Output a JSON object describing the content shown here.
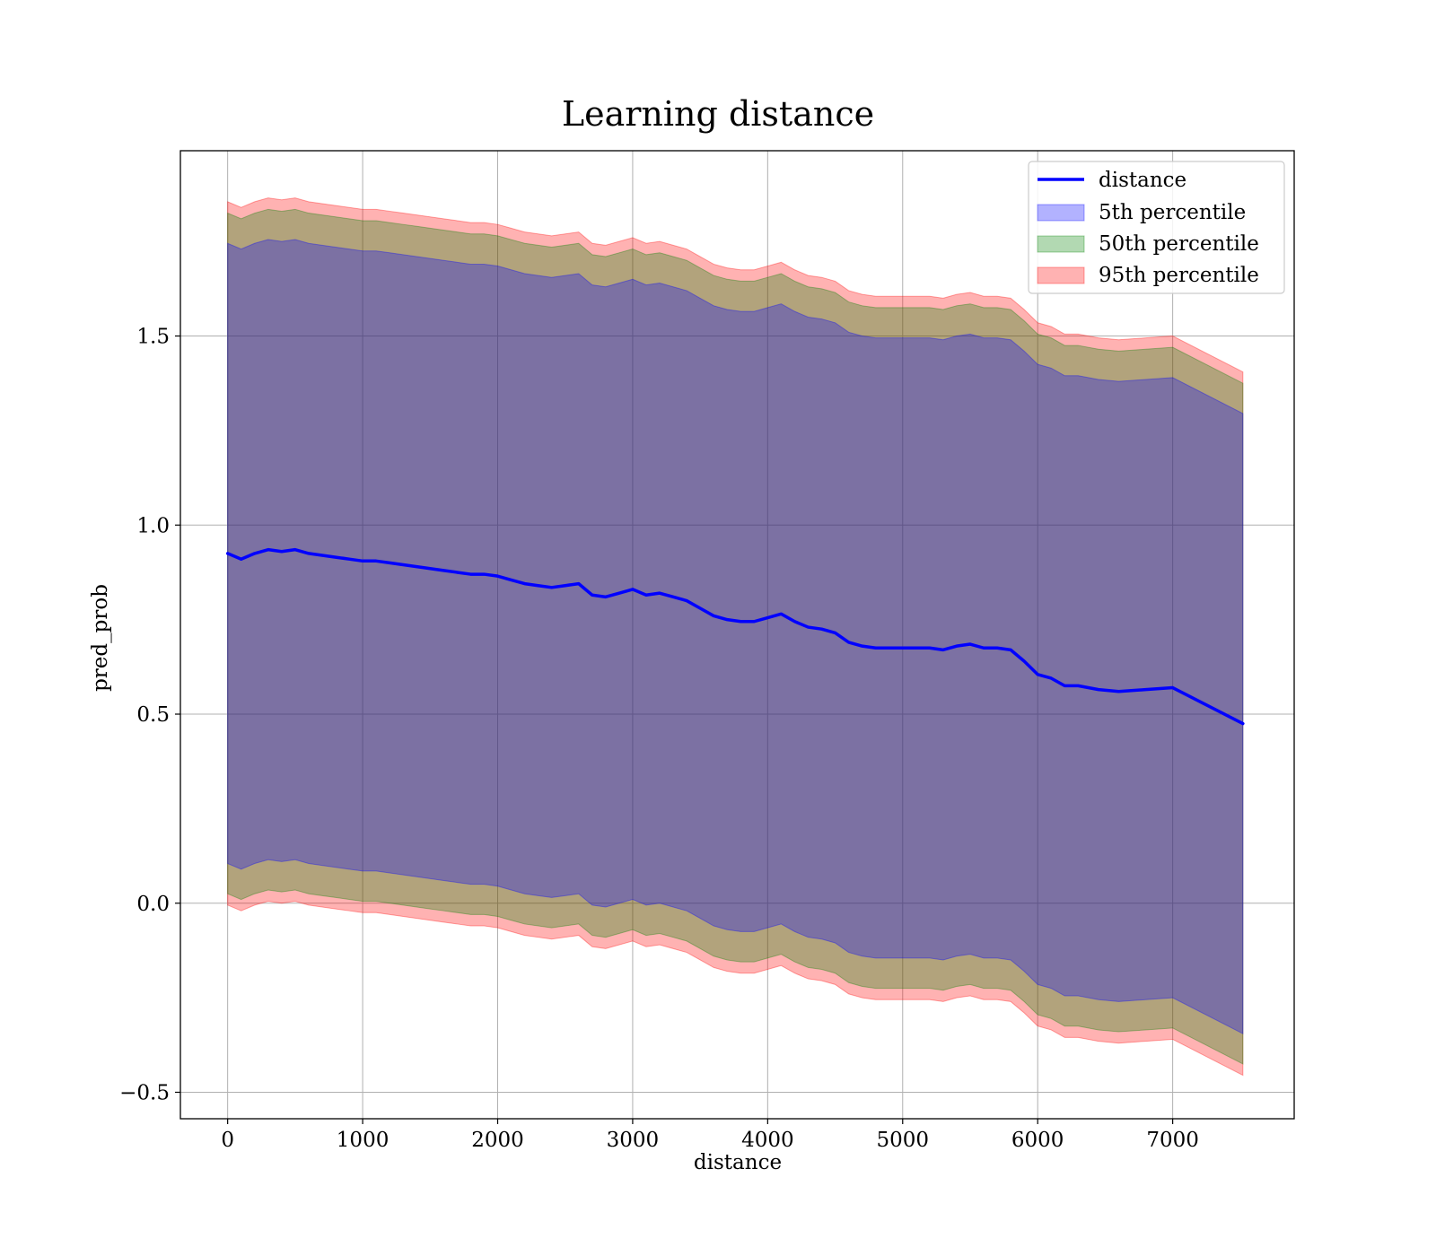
{
  "chart_data": {
    "type": "line",
    "title": "Learning distance",
    "xlabel": "distance",
    "ylabel": "pred_prob",
    "xlim": [
      -350,
      7900
    ],
    "ylim": [
      -0.57,
      1.99
    ],
    "xticks": [
      0,
      1000,
      2000,
      3000,
      4000,
      5000,
      6000,
      7000
    ],
    "xtick_labels": [
      "0",
      "1000",
      "2000",
      "3000",
      "4000",
      "5000",
      "6000",
      "7000"
    ],
    "yticks": [
      -0.5,
      0.0,
      0.5,
      1.0,
      1.5
    ],
    "ytick_labels": [
      "−0.5",
      "0.0",
      "0.5",
      "1.0",
      "1.5"
    ],
    "grid": true,
    "legend_position": "top-right",
    "x": [
      0,
      100,
      200,
      300,
      400,
      500,
      600,
      700,
      800,
      900,
      1000,
      1100,
      1200,
      1300,
      1400,
      1500,
      1600,
      1700,
      1800,
      1900,
      2000,
      2100,
      2200,
      2300,
      2400,
      2500,
      2600,
      2700,
      2800,
      2900,
      3000,
      3100,
      3200,
      3300,
      3400,
      3500,
      3600,
      3700,
      3800,
      3900,
      4000,
      4100,
      4200,
      4300,
      4400,
      4500,
      4600,
      4700,
      4800,
      4900,
      5000,
      5100,
      5200,
      5300,
      5400,
      5500,
      5600,
      5700,
      5800,
      5900,
      6000,
      6100,
      6200,
      6300,
      6450,
      6600,
      6800,
      7000,
      7520
    ],
    "series": [
      {
        "name": "distance",
        "kind": "line",
        "color": "#0000ff",
        "values": [
          0.925,
          0.91,
          0.925,
          0.935,
          0.93,
          0.935,
          0.925,
          0.92,
          0.915,
          0.91,
          0.905,
          0.905,
          0.9,
          0.895,
          0.89,
          0.885,
          0.88,
          0.875,
          0.87,
          0.87,
          0.865,
          0.855,
          0.845,
          0.84,
          0.835,
          0.84,
          0.845,
          0.815,
          0.81,
          0.82,
          0.83,
          0.815,
          0.82,
          0.81,
          0.8,
          0.78,
          0.76,
          0.75,
          0.745,
          0.745,
          0.755,
          0.765,
          0.745,
          0.73,
          0.725,
          0.715,
          0.69,
          0.68,
          0.675,
          0.675,
          0.675,
          0.675,
          0.675,
          0.67,
          0.68,
          0.685,
          0.675,
          0.675,
          0.67,
          0.64,
          0.605,
          0.595,
          0.575,
          0.575,
          0.565,
          0.56,
          0.565,
          0.57,
          0.475
        ]
      },
      {
        "name": "5th percentile",
        "kind": "band",
        "color": "#0000ff",
        "half_width": 0.82
      },
      {
        "name": "50th percentile",
        "kind": "band",
        "color": "#008000",
        "half_width": 0.9
      },
      {
        "name": "95th percentile",
        "kind": "band",
        "color": "#ff0000",
        "half_width": 0.93
      }
    ]
  }
}
